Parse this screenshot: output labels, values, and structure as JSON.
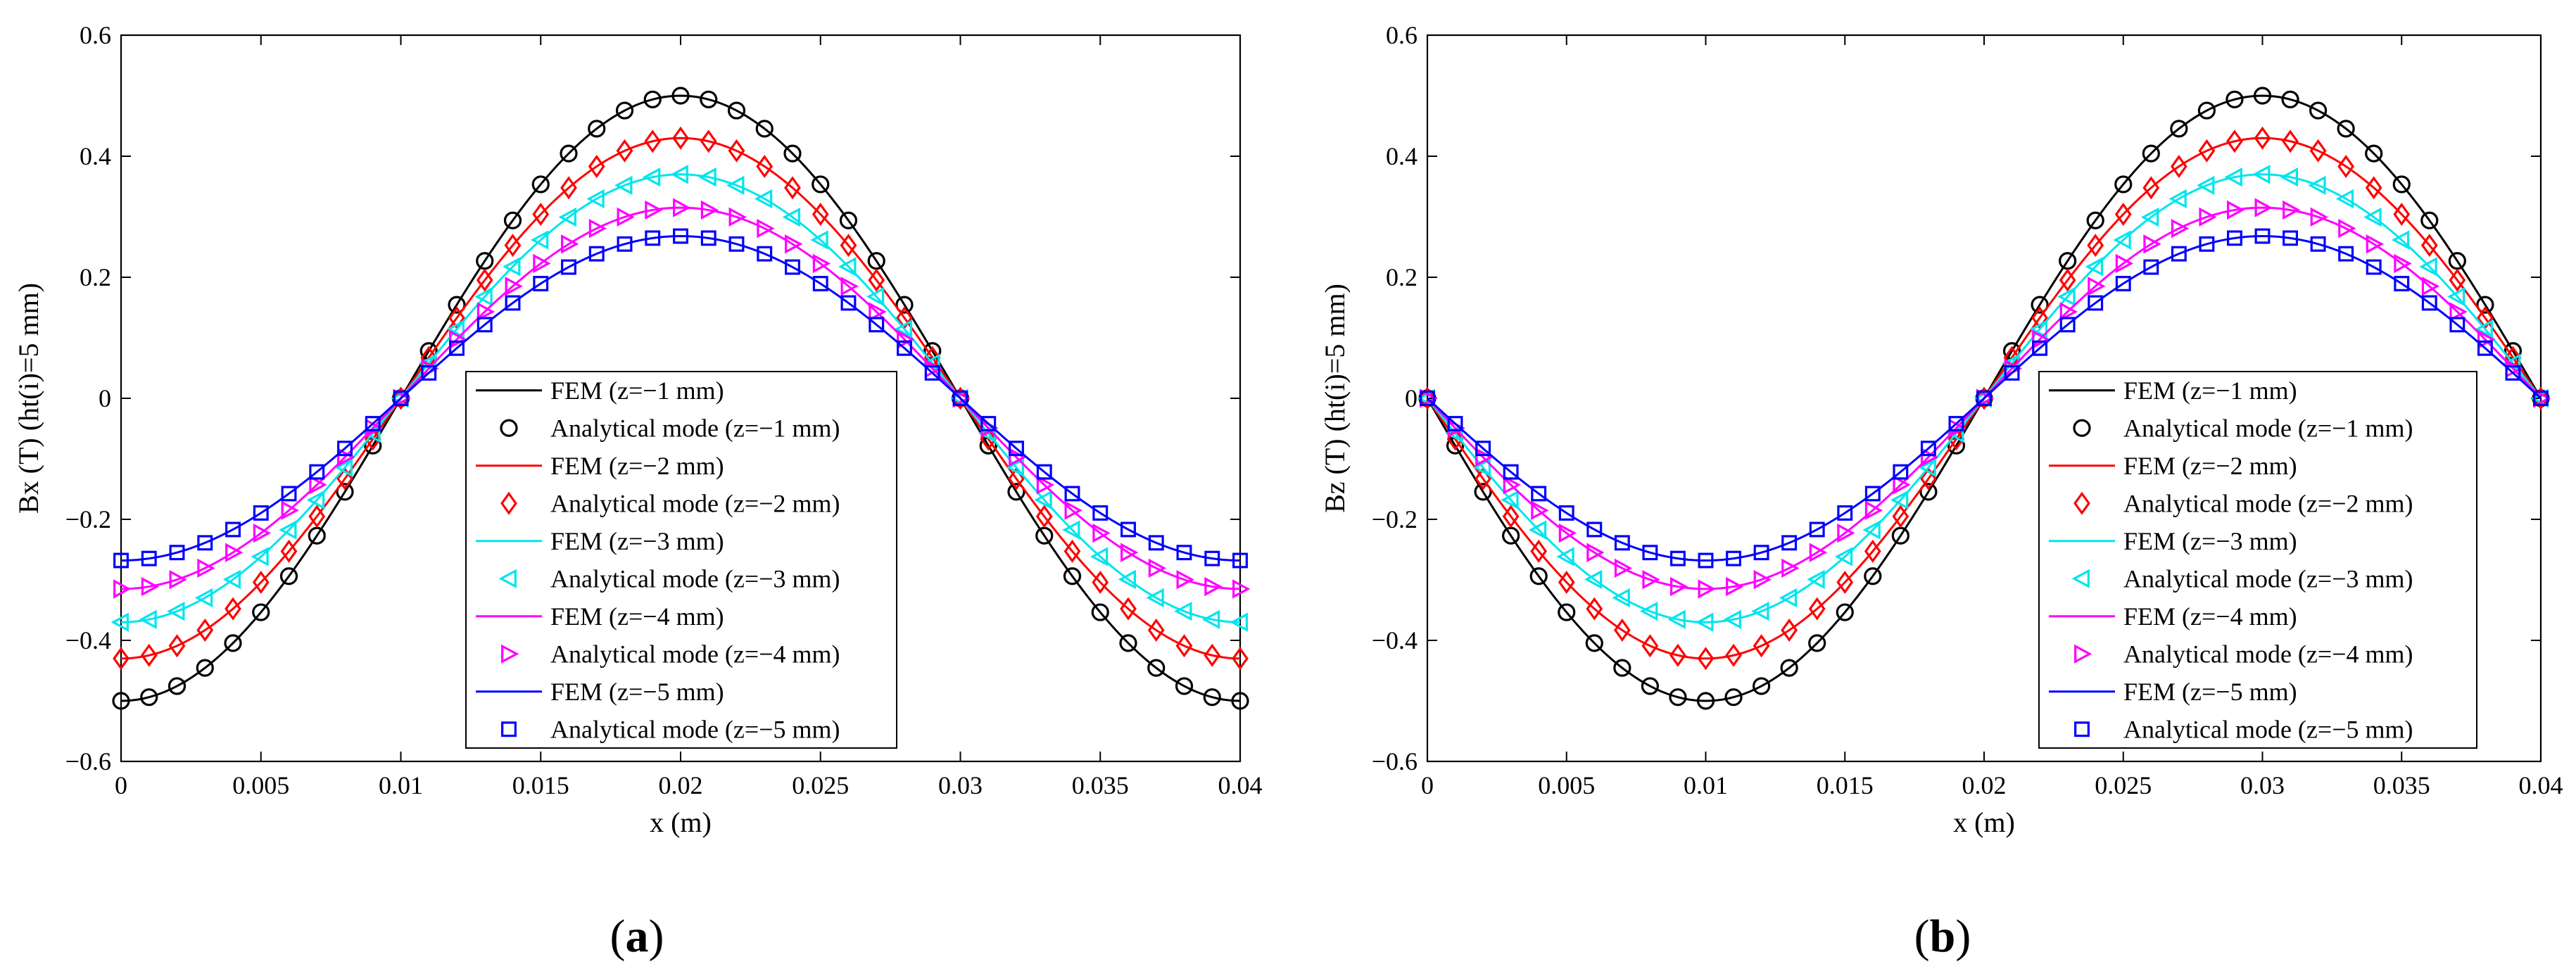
{
  "figure": {
    "panel_labels": [
      {
        "open": "(",
        "letter": "a",
        "close": ")"
      },
      {
        "open": "(",
        "letter": "b",
        "close": ")"
      }
    ]
  },
  "chart_data": [
    {
      "type": "line",
      "panel": "a",
      "title": "",
      "xlabel": "x (m)",
      "ylabel": "Bx (T) (ht(i)=5 mm)",
      "xlim": [
        0,
        0.04
      ],
      "ylim": [
        -0.6,
        0.6
      ],
      "x_ticks": [
        0,
        0.005,
        0.01,
        0.015,
        0.02,
        0.025,
        0.03,
        0.035,
        0.04
      ],
      "x_tick_labels": [
        "0",
        "0.005",
        "0.01",
        "0.015",
        "0.02",
        "0.025",
        "0.03",
        "0.035",
        "0.04"
      ],
      "y_ticks": [
        -0.6,
        -0.4,
        -0.2,
        0,
        0.2,
        0.4,
        0.6
      ],
      "y_tick_labels": [
        "−0.6",
        "−0.4",
        "−0.2",
        "0",
        "0.2",
        "0.4",
        "0.6"
      ],
      "function": "cos",
      "period": 0.04,
      "phase": 0.02,
      "legend_position": "center-right",
      "series": [
        {
          "name": "FEM (z=−1 mm)",
          "kind": "line",
          "color": "#000000",
          "amplitude": 0.5
        },
        {
          "name": "Analytical mode (z=−1 mm)",
          "kind": "markers",
          "marker": "circle",
          "color": "#000000",
          "amplitude": 0.5
        },
        {
          "name": "FEM (z=−2 mm)",
          "kind": "line",
          "color": "#ff0000",
          "amplitude": 0.43
        },
        {
          "name": "Analytical mode (z=−2 mm)",
          "kind": "markers",
          "marker": "diamond",
          "color": "#ff0000",
          "amplitude": 0.43
        },
        {
          "name": "FEM (z=−3 mm)",
          "kind": "line",
          "color": "#00e5ee",
          "amplitude": 0.37
        },
        {
          "name": "Analytical mode (z=−3 mm)",
          "kind": "markers",
          "marker": "triangle-left",
          "color": "#00e5ee",
          "amplitude": 0.37
        },
        {
          "name": "FEM (z=−4 mm)",
          "kind": "line",
          "color": "#ff00ff",
          "amplitude": 0.315
        },
        {
          "name": "Analytical mode (z=−4 mm)",
          "kind": "markers",
          "marker": "triangle-right",
          "color": "#ff00ff",
          "amplitude": 0.315
        },
        {
          "name": "FEM (z=−5 mm)",
          "kind": "line",
          "color": "#0000ff",
          "amplitude": 0.268
        },
        {
          "name": "Analytical mode (z=−5 mm)",
          "kind": "markers",
          "marker": "square",
          "color": "#0000ff",
          "amplitude": 0.268
        }
      ]
    },
    {
      "type": "line",
      "panel": "b",
      "title": "",
      "xlabel": "x (m)",
      "ylabel": "Bz (T) (ht(i)=5 mm)",
      "xlim": [
        0,
        0.04
      ],
      "ylim": [
        -0.6,
        0.6
      ],
      "x_ticks": [
        0,
        0.005,
        0.01,
        0.015,
        0.02,
        0.025,
        0.03,
        0.035,
        0.04
      ],
      "x_tick_labels": [
        "0",
        "0.005",
        "0.01",
        "0.015",
        "0.02",
        "0.025",
        "0.03",
        "0.035",
        "0.04"
      ],
      "y_ticks": [
        -0.6,
        -0.4,
        -0.2,
        0,
        0.2,
        0.4,
        0.6
      ],
      "y_tick_labels": [
        "−0.6",
        "−0.4",
        "−0.2",
        "0",
        "0.2",
        "0.4",
        "0.6"
      ],
      "function": "-sin",
      "period": 0.04,
      "phase": 0,
      "legend_position": "center-right",
      "series": [
        {
          "name": "FEM (z=−1 mm)",
          "kind": "line",
          "color": "#000000",
          "amplitude": 0.5
        },
        {
          "name": "Analytical mode (z=−1 mm)",
          "kind": "markers",
          "marker": "circle",
          "color": "#000000",
          "amplitude": 0.5
        },
        {
          "name": "FEM (z=−2 mm)",
          "kind": "line",
          "color": "#ff0000",
          "amplitude": 0.43
        },
        {
          "name": "Analytical mode (z=−2 mm)",
          "kind": "markers",
          "marker": "diamond",
          "color": "#ff0000",
          "amplitude": 0.43
        },
        {
          "name": "FEM (z=−3 mm)",
          "kind": "line",
          "color": "#00e5ee",
          "amplitude": 0.37
        },
        {
          "name": "Analytical mode (z=−3 mm)",
          "kind": "markers",
          "marker": "triangle-left",
          "color": "#00e5ee",
          "amplitude": 0.37
        },
        {
          "name": "FEM (z=−4 mm)",
          "kind": "line",
          "color": "#ff00ff",
          "amplitude": 0.315
        },
        {
          "name": "Analytical mode (z=−4 mm)",
          "kind": "markers",
          "marker": "triangle-right",
          "color": "#ff00ff",
          "amplitude": 0.315
        },
        {
          "name": "FEM (z=−5 mm)",
          "kind": "line",
          "color": "#0000ff",
          "amplitude": 0.268
        },
        {
          "name": "Analytical mode (z=−5 mm)",
          "kind": "markers",
          "marker": "square",
          "color": "#0000ff",
          "amplitude": 0.268
        }
      ]
    }
  ]
}
